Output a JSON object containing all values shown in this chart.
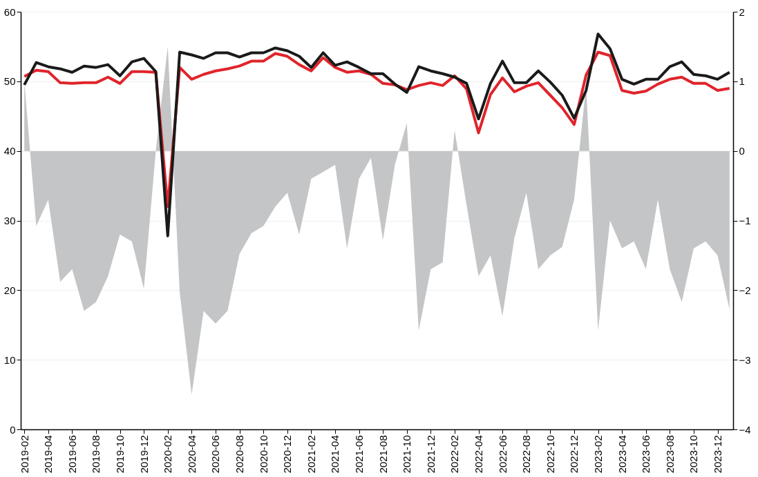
{
  "chart_data": {
    "type": "line",
    "categories": [
      "2019-02",
      null,
      "2019-04",
      null,
      "2019-06",
      null,
      "2019-08",
      null,
      "2019-10",
      null,
      "2019-12",
      null,
      "2020-02",
      null,
      "2020-04",
      null,
      "2020-06",
      null,
      "2020-08",
      null,
      "2020-10",
      null,
      "2020-12",
      null,
      "2021-02",
      null,
      "2021-04",
      null,
      "2021-06",
      null,
      "2021-08",
      null,
      "2021-10",
      null,
      "2021-12",
      null,
      "2022-02",
      null,
      "2022-04",
      null,
      "2022-06",
      null,
      "2022-08",
      null,
      "2022-10",
      null,
      "2022-12",
      null,
      "2023-02",
      null,
      "2023-04",
      null,
      "2023-06",
      null,
      "2023-08",
      null,
      "2023-10",
      null,
      "2023-12",
      null
    ],
    "series": [
      {
        "type": "area",
        "axis": "y2",
        "color": "#c4c5c7",
        "values": [
          1.0,
          -1.08,
          -0.7,
          -1.88,
          -1.7,
          -2.3,
          -2.17,
          -1.8,
          -1.2,
          -1.3,
          -1.98,
          0.0,
          1.5,
          -2.03,
          -3.5,
          -2.3,
          -2.48,
          -2.3,
          -1.48,
          -1.18,
          -1.08,
          -0.8,
          -0.6,
          -1.2,
          -0.4,
          -0.3,
          -0.2,
          -1.4,
          -0.4,
          -0.1,
          -1.28,
          -0.2,
          0.4,
          -2.58,
          -1.7,
          -1.6,
          0.3,
          -0.78,
          -1.8,
          -1.5,
          -2.37,
          -1.25,
          -0.6,
          -1.7,
          -1.5,
          -1.38,
          -0.7,
          0.94,
          -2.58,
          -1.0,
          -1.4,
          -1.3,
          -1.7,
          -0.7,
          -1.7,
          -2.17,
          -1.4,
          -1.3,
          -1.5,
          -2.28
        ]
      },
      {
        "color": "#e0242b",
        "values": [
          50.7,
          51.6,
          51.4,
          49.8,
          49.7,
          49.8,
          49.8,
          50.6,
          49.7,
          51.4,
          51.4,
          51.3,
          32.0,
          52.0,
          50.3,
          51.0,
          51.5,
          51.8,
          52.2,
          52.9,
          52.9,
          54.0,
          53.6,
          52.4,
          51.5,
          53.4,
          52.0,
          51.3,
          51.5,
          51.0,
          49.7,
          49.5,
          48.8,
          49.4,
          49.8,
          49.4,
          50.8,
          48.9,
          42.6,
          48.1,
          50.5,
          48.5,
          49.3,
          49.8,
          48.0,
          46.2,
          43.8,
          50.9,
          54.2,
          53.7,
          48.7,
          48.3,
          48.6,
          49.6,
          50.3,
          50.6,
          49.7,
          49.7,
          48.7,
          49.0
        ]
      },
      {
        "color": "#1a1a1a",
        "values": [
          49.5,
          52.7,
          52.1,
          51.8,
          51.3,
          52.2,
          52.0,
          52.4,
          50.8,
          52.8,
          53.3,
          51.4,
          27.8,
          54.2,
          53.8,
          53.3,
          54.1,
          54.1,
          53.5,
          54.1,
          54.1,
          54.8,
          54.4,
          53.6,
          52.0,
          54.1,
          52.3,
          52.8,
          52.0,
          51.1,
          51.1,
          49.6,
          48.4,
          52.1,
          51.5,
          51.1,
          50.6,
          49.7,
          44.6,
          49.7,
          52.9,
          49.8,
          49.8,
          51.5,
          49.9,
          48.0,
          44.7,
          48.7,
          56.8,
          54.7,
          50.3,
          49.6,
          50.3,
          50.3,
          52.1,
          52.8,
          51.0,
          50.8,
          50.3,
          51.3
        ]
      }
    ],
    "ylim": [
      0,
      60
    ],
    "yticks": [
      0,
      10,
      20,
      30,
      40,
      50,
      60
    ],
    "y2lim": [
      -4,
      2
    ],
    "y2ticks": [
      -4,
      -3,
      -2,
      -1,
      0,
      1,
      2
    ],
    "grid": "y",
    "line_style": "solid",
    "marker": "none"
  }
}
